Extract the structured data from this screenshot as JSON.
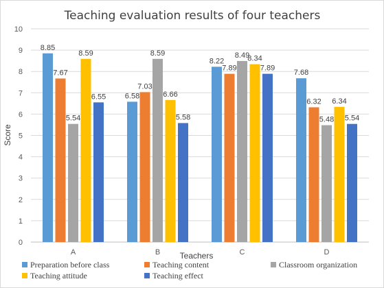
{
  "chart_data": {
    "type": "bar",
    "title": "Teaching evaluation results of four teachers",
    "xlabel": "Teachers",
    "ylabel": "Score",
    "ylim": [
      0,
      10
    ],
    "yticks": [
      0,
      1,
      2,
      3,
      4,
      5,
      6,
      7,
      8,
      9,
      10
    ],
    "categories": [
      "A",
      "B",
      "C",
      "D"
    ],
    "grid": true,
    "legend_position": "bottom",
    "series": [
      {
        "name": "Preparation before class",
        "color": "#5B9BD5",
        "values": [
          8.85,
          6.58,
          8.22,
          7.68
        ]
      },
      {
        "name": "Teaching content",
        "color": "#ED7D31",
        "values": [
          7.67,
          7.03,
          7.89,
          6.32
        ]
      },
      {
        "name": "Classroom organization",
        "color": "#A5A5A5",
        "values": [
          5.54,
          8.59,
          8.49,
          5.48
        ]
      },
      {
        "name": "Teaching attitude",
        "color": "#FFC000",
        "values": [
          8.59,
          6.66,
          8.34,
          6.34
        ]
      },
      {
        "name": "Teaching effect",
        "color": "#4472C4",
        "values": [
          6.55,
          5.58,
          7.89,
          5.54
        ]
      }
    ]
  }
}
